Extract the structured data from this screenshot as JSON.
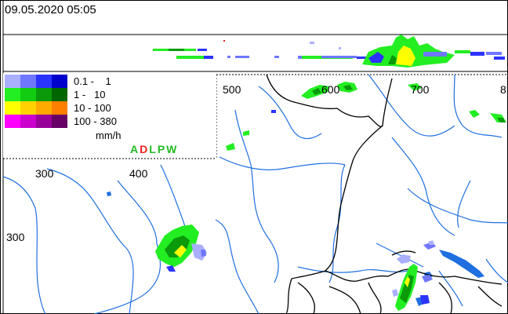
{
  "header": {
    "timestamp": "09.05.2020 05:05"
  },
  "legend": {
    "rows": [
      {
        "label": "0.1 -    1",
        "colors": [
          "#aab0ff",
          "#6f77ff",
          "#2b33ff",
          "#0000cc"
        ]
      },
      {
        "label": "1 -   10",
        "colors": [
          "#22ee22",
          "#11cc11",
          "#0a9a0a",
          "#006600"
        ]
      },
      {
        "label": "10 - 100",
        "colors": [
          "#ffff00",
          "#ffd200",
          "#ffaa00",
          "#ff7f00"
        ]
      },
      {
        "label": "100 - 380",
        "colors": [
          "#ff00ff",
          "#cc00cc",
          "#990099",
          "#660066"
        ]
      }
    ],
    "unit": "mm/h",
    "stations": [
      {
        "letter": "A",
        "color": "#22bb22"
      },
      {
        "letter": "D",
        "color": "#ee2222"
      },
      {
        "letter": "L",
        "color": "#22bb22"
      },
      {
        "letter": "P",
        "color": "#22bb22"
      },
      {
        "letter": "W",
        "color": "#22bb22"
      }
    ]
  },
  "axes": {
    "top_ticks": [
      "500",
      "600",
      "700",
      "8"
    ],
    "inner_top_ticks": [
      "300",
      "400"
    ],
    "left_ticks": [
      "300"
    ]
  },
  "colors": {
    "river": "#1f6fe0",
    "border": "#000000",
    "background": "#ffffff"
  }
}
